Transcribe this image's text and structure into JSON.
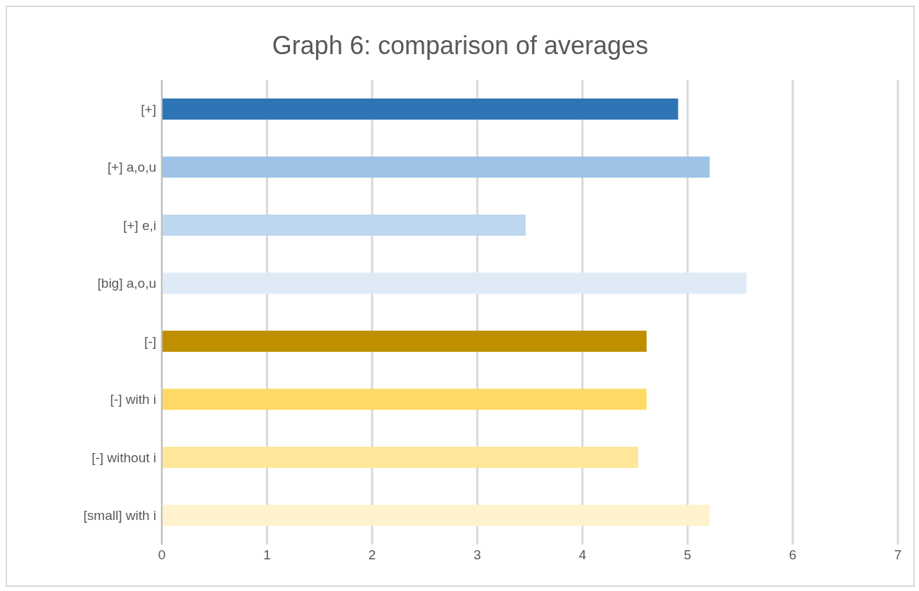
{
  "chart_data": {
    "type": "bar",
    "orientation": "horizontal",
    "title": "Graph 6: comparison of averages",
    "categories": [
      "[+]",
      "[+] a,o,u",
      "[+] e,i",
      "[big] a,o,u",
      "[-]",
      "[-] with i",
      "[-] without i",
      "[small] with i"
    ],
    "values": [
      4.91,
      5.21,
      3.46,
      5.56,
      4.61,
      4.61,
      4.53,
      5.21
    ],
    "colors": [
      "#2e75b6",
      "#9dc3e6",
      "#bdd7ee",
      "#deebf7",
      "#bf8f00",
      "#ffd966",
      "#ffe699",
      "#fff2cc"
    ],
    "xlim": [
      0,
      7
    ],
    "xticks": [
      0,
      1,
      2,
      3,
      4,
      5,
      6,
      7
    ],
    "grid": "x"
  }
}
